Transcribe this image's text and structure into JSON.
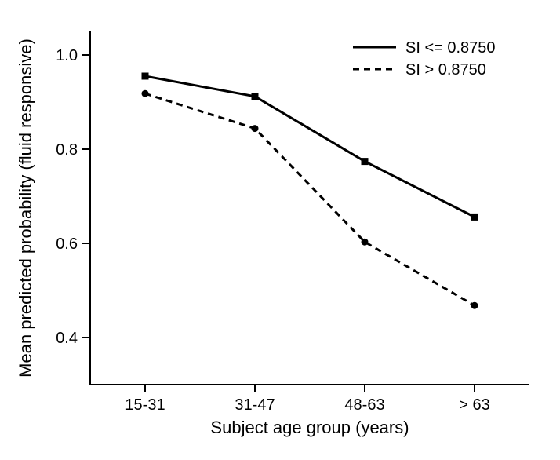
{
  "chart": {
    "type": "line",
    "background_color": "#ffffff",
    "stroke_color": "#000000",
    "axis_stroke_width": 2,
    "line_stroke_width": 3,
    "font_family": "Arial",
    "categories": [
      "15-31",
      "31-47",
      "48-63",
      "> 63"
    ],
    "x": {
      "title": "Subject age group (years)",
      "title_fontsize": 22,
      "tick_fontsize": 20
    },
    "y": {
      "title": "Mean predicted probability (fluid responsive)",
      "title_fontsize": 22,
      "tick_fontsize": 20,
      "ylim": [
        0.3,
        1.05
      ],
      "ticks": [
        0.4,
        0.6,
        0.8,
        1.0
      ],
      "tick_labels": [
        "0.4",
        "0.6",
        "0.8",
        "1.0"
      ]
    },
    "legend": {
      "position": "top-right",
      "items": [
        {
          "key": "solid",
          "label": "SI <= 0.8750"
        },
        {
          "key": "dash",
          "label": "SI > 0.8750"
        }
      ]
    },
    "series": {
      "solid": {
        "label": "SI <= 0.8750",
        "values": [
          0.955,
          0.912,
          0.774,
          0.656
        ],
        "color": "#000000",
        "line_style": "solid",
        "marker": "square",
        "marker_size": 9
      },
      "dash": {
        "label": "SI > 0.8750",
        "values": [
          0.918,
          0.844,
          0.603,
          0.468
        ],
        "color": "#000000",
        "line_style": "dash",
        "dash_pattern": "8 6",
        "marker": "circle",
        "marker_size": 9
      }
    }
  }
}
